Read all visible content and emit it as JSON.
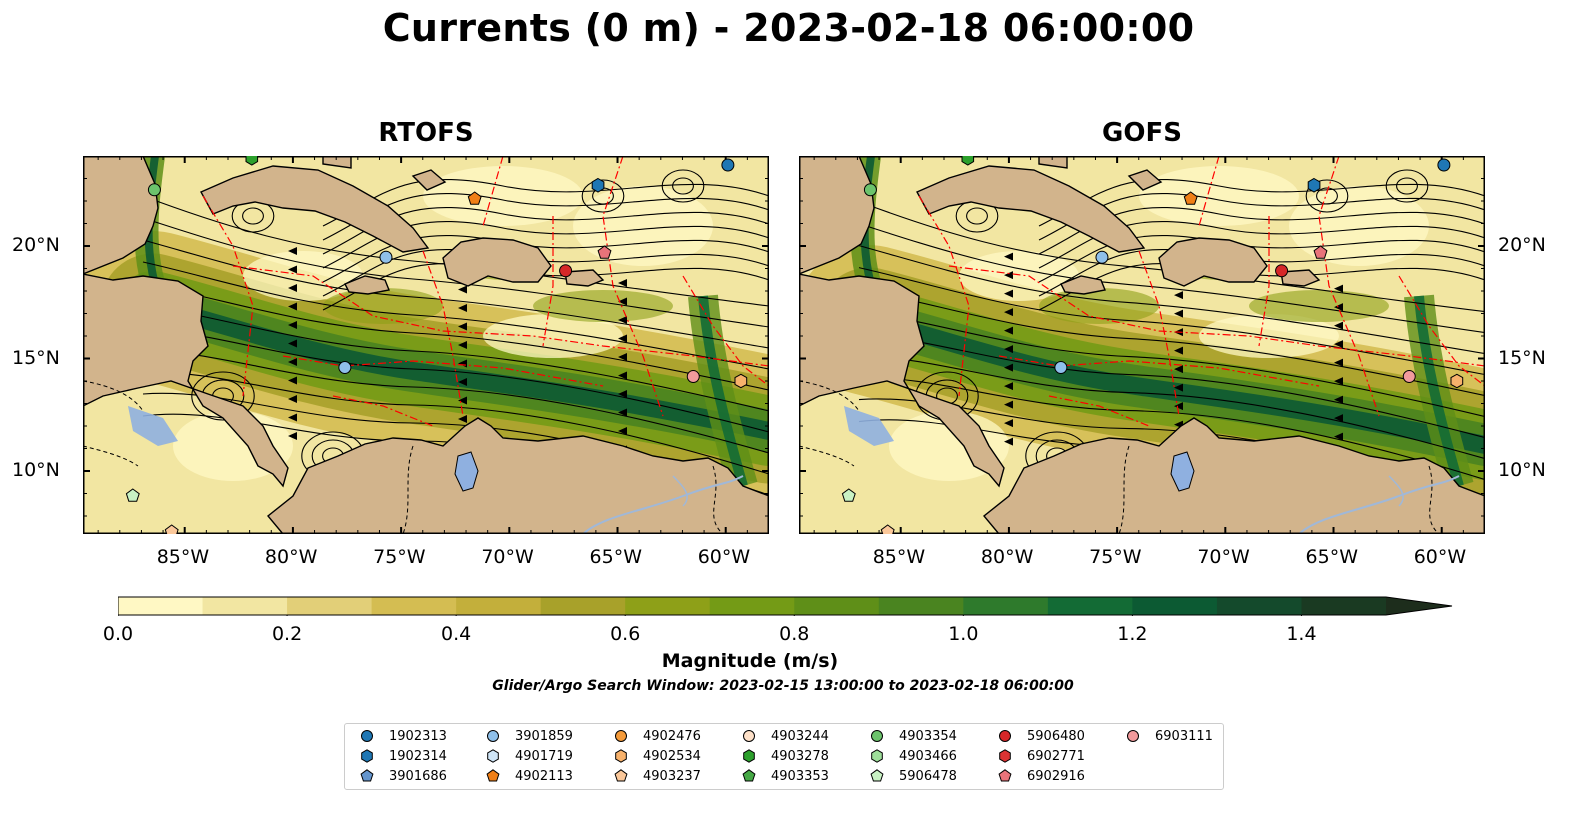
{
  "title": "Currents (0 m) - 2023-02-18 06:00:00",
  "panels": [
    {
      "title": "RTOFS"
    },
    {
      "title": "GOFS"
    }
  ],
  "lon_ticks": [
    "85°W",
    "80°W",
    "75°W",
    "70°W",
    "65°W",
    "60°W"
  ],
  "lat_ticks": [
    "20°N",
    "15°N",
    "10°N"
  ],
  "map_extent": {
    "lon": [
      -89.7,
      -58.0
    ],
    "lat": [
      7.2,
      24.0
    ]
  },
  "colorbar": {
    "label": "Magnitude (m/s)",
    "ticks": [
      "0.0",
      "0.2",
      "0.4",
      "0.6",
      "0.8",
      "1.0",
      "1.2",
      "1.4"
    ],
    "range": [
      0.0,
      1.5
    ],
    "extend": "max",
    "colors": [
      "#fff8c4",
      "#f2e6a2",
      "#e2cf78",
      "#d4bd52",
      "#c3af3b",
      "#a8a12a",
      "#8ea018",
      "#749b16",
      "#5f8f18",
      "#4a8420",
      "#2e7a2c",
      "#136b35",
      "#0c5a33",
      "#144a2c",
      "#1a3a22",
      "#1d2d1c"
    ]
  },
  "search_window": "Glider/Argo Search Window: 2023-02-15 13:00:00 to 2023-02-18 06:00:00",
  "colors": {
    "land": "#d2b48c",
    "lake": "#8fb0e0",
    "river": "#a0b8d8",
    "eez": "#ff0000",
    "stream": "#000000"
  },
  "legend": [
    {
      "id": "1902313",
      "marker": "circle",
      "color": "#1f77b4"
    },
    {
      "id": "1902314",
      "marker": "hexagon",
      "color": "#1f77b4"
    },
    {
      "id": "3901686",
      "marker": "pentagon",
      "color": "#6495cd"
    },
    {
      "id": "3901859",
      "marker": "circle",
      "color": "#8fc0ea"
    },
    {
      "id": "4901719",
      "marker": "hexagon",
      "color": "#cfe5f7"
    },
    {
      "id": "4902113",
      "marker": "pentagon",
      "color": "#f07f16"
    },
    {
      "id": "4902476",
      "marker": "circle",
      "color": "#f59b3a"
    },
    {
      "id": "4902534",
      "marker": "hexagon",
      "color": "#f8b26c"
    },
    {
      "id": "4903237",
      "marker": "pentagon",
      "color": "#fbc89a"
    },
    {
      "id": "4903244",
      "marker": "circle",
      "color": "#fde0c8"
    },
    {
      "id": "4903278",
      "marker": "hexagon",
      "color": "#2ca02c"
    },
    {
      "id": "4903353",
      "marker": "pentagon",
      "color": "#45a845"
    },
    {
      "id": "4903354",
      "marker": "circle",
      "color": "#6cc36c"
    },
    {
      "id": "4903466",
      "marker": "hexagon",
      "color": "#9ede9a"
    },
    {
      "id": "5906478",
      "marker": "pentagon",
      "color": "#c9f2c4"
    },
    {
      "id": "5906480",
      "marker": "circle",
      "color": "#d62728"
    },
    {
      "id": "6902771",
      "marker": "hexagon",
      "color": "#dd3333"
    },
    {
      "id": "6902916",
      "marker": "pentagon",
      "color": "#e9737a"
    },
    {
      "id": "6903111",
      "marker": "circle",
      "color": "#f29a9c"
    }
  ],
  "floats": [
    {
      "id": "1902313",
      "lon": -59.9,
      "lat": 23.6
    },
    {
      "id": "1902314",
      "lon": -65.9,
      "lat": 22.7
    },
    {
      "id": "3901859",
      "lon": -75.7,
      "lat": 19.5
    },
    {
      "id": "3901859",
      "lon": -77.6,
      "lat": 14.6
    },
    {
      "id": "4902113",
      "lon": -71.6,
      "lat": 22.1
    },
    {
      "id": "4902534",
      "lon": -59.3,
      "lat": 14.0
    },
    {
      "id": "4903237",
      "lon": -85.6,
      "lat": 7.3
    },
    {
      "id": "4903278",
      "lon": -81.9,
      "lat": 23.9
    },
    {
      "id": "4903354",
      "lon": -86.4,
      "lat": 22.5
    },
    {
      "id": "5906478",
      "lon": -87.4,
      "lat": 8.9
    },
    {
      "id": "5906480",
      "lon": -67.4,
      "lat": 18.9
    },
    {
      "id": "6902916",
      "lon": -65.6,
      "lat": 19.7
    },
    {
      "id": "6903111",
      "lon": -61.5,
      "lat": 14.2
    }
  ]
}
